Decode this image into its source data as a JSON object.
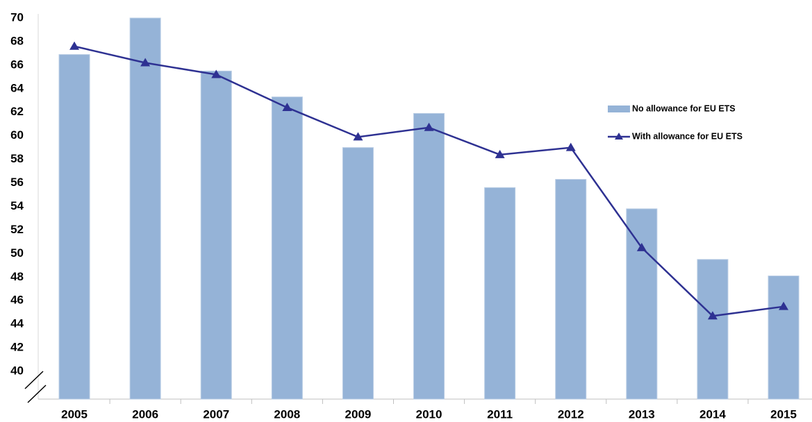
{
  "chart_data": {
    "type": "bar",
    "categories": [
      "2005",
      "2006",
      "2007",
      "2008",
      "2009",
      "2010",
      "2011",
      "2012",
      "2013",
      "2014",
      "2015"
    ],
    "series": [
      {
        "name": "No allowance for EU ETS",
        "type": "bar",
        "color": "#95b3d7",
        "values": [
          66.9,
          70,
          65.5,
          63.3,
          59.0,
          61.9,
          55.6,
          56.3,
          53.8,
          49.5,
          48.1
        ]
      },
      {
        "name": "With allowance for EU ETS",
        "type": "line",
        "color": "#2e3192",
        "values": [
          67.6,
          66.2,
          65.2,
          62.4,
          59.9,
          60.7,
          58.4,
          59.0,
          50.5,
          44.7,
          45.5
        ]
      }
    ],
    "ylim": [
      40,
      70
    ],
    "yticks": [
      40,
      42,
      44,
      46,
      48,
      50,
      52,
      54,
      56,
      58,
      60,
      62,
      64,
      66,
      68,
      70
    ],
    "legend": "right"
  }
}
